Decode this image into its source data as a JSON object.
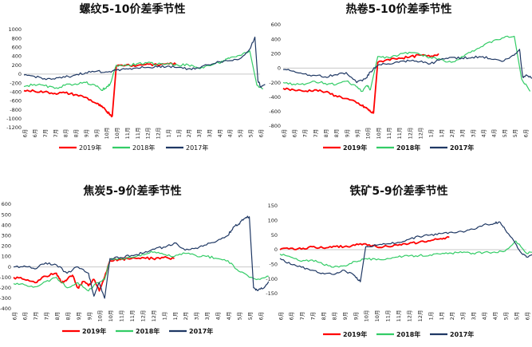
{
  "legend_labels": [
    "2019年",
    "2018年",
    "2017年"
  ],
  "series_colors": {
    "2019年": "#ff0000",
    "2018年": "#33cc66",
    "2017年": "#1f3864"
  },
  "chart_data": [
    {
      "type": "line",
      "title": "螺纹5-10价差季节性",
      "xlabel": "",
      "ylabel": "",
      "ylim": [
        -1200,
        1000
      ],
      "y_ticks": [
        "1000",
        "800",
        "600",
        "400",
        "200",
        "0",
        "-200",
        "-400",
        "-600",
        "-800",
        "-1000",
        "-1200"
      ],
      "x_ticks": [
        "6月",
        "6月",
        "7月",
        "7月",
        "8月",
        "8月",
        "9月",
        "9月",
        "10月",
        "10月",
        "11月",
        "11月",
        "12月",
        "12月",
        "1月",
        "1月",
        "2月",
        "3月",
        "3月",
        "4月",
        "4月",
        "5月",
        "5月",
        "6月"
      ],
      "grid": false,
      "legend_position": "bottom",
      "series": [
        {
          "name": "2019年",
          "x": [
            0,
            1,
            2,
            3,
            4,
            5,
            6,
            7,
            7.5,
            8,
            8.3,
            8.6,
            9,
            10,
            11,
            12,
            13,
            14,
            14.8
          ],
          "values": [
            -370,
            -380,
            -400,
            -430,
            -420,
            -460,
            -520,
            -650,
            -720,
            -820,
            -880,
            -940,
            180,
            210,
            190,
            230,
            200,
            240,
            220
          ]
        },
        {
          "name": "2018年",
          "x": [
            0,
            1,
            2,
            3,
            4,
            5,
            6,
            6.8,
            7.5,
            8,
            8.4,
            9,
            10,
            11,
            12,
            13,
            14,
            15,
            16,
            17,
            18,
            19,
            19.5,
            20,
            21,
            22,
            22.7,
            23.3
          ],
          "values": [
            -280,
            -230,
            -260,
            -320,
            -250,
            -220,
            -190,
            -230,
            -350,
            -320,
            -220,
            200,
            190,
            230,
            250,
            220,
            240,
            200,
            210,
            130,
            190,
            250,
            300,
            350,
            420,
            520,
            -250,
            -330
          ]
        },
        {
          "name": "2017年",
          "x": [
            0,
            1,
            2,
            3,
            4,
            5,
            6,
            7,
            8,
            9,
            10,
            11,
            12,
            13,
            14,
            15,
            16,
            17,
            18,
            19,
            20,
            21,
            22,
            22.5,
            22.8,
            23.1,
            23.5
          ],
          "values": [
            -20,
            -50,
            -100,
            -110,
            -70,
            -20,
            30,
            60,
            50,
            90,
            120,
            140,
            150,
            160,
            180,
            150,
            120,
            140,
            210,
            280,
            300,
            340,
            560,
            830,
            -150,
            -300,
            -230
          ]
        }
      ]
    },
    {
      "type": "line",
      "title": "热卷5-10价差季节性",
      "xlabel": "",
      "ylabel": "",
      "ylim": [
        -800,
        600
      ],
      "y_ticks": [
        "600",
        "400",
        "200",
        "0",
        "-200",
        "-400",
        "-600",
        "-800"
      ],
      "x_ticks": [
        "6月",
        "6月",
        "7月",
        "7月",
        "8月",
        "8月",
        "9月",
        "9月",
        "10月",
        "10月",
        "11月",
        "11月",
        "12月",
        "12月",
        "1月",
        "1月",
        "2月",
        "3月",
        "3月",
        "4月",
        "4月",
        "5月",
        "5月",
        "6月"
      ],
      "grid": false,
      "legend_position": "bottom",
      "series": [
        {
          "name": "2019年",
          "x": [
            0,
            1,
            2,
            3,
            4,
            5,
            6,
            7,
            7.5,
            8,
            8.3,
            8.6,
            9,
            10,
            11,
            12,
            13,
            14,
            14.8
          ],
          "values": [
            -280,
            -300,
            -320,
            -300,
            -330,
            -380,
            -420,
            -480,
            -520,
            -560,
            -600,
            -620,
            80,
            120,
            140,
            150,
            180,
            160,
            200
          ]
        },
        {
          "name": "2018年",
          "x": [
            0,
            1,
            2,
            3,
            4,
            5,
            6,
            7,
            7.5,
            8,
            8.3,
            9,
            10,
            11,
            12,
            13,
            14,
            15,
            16,
            17,
            18,
            19,
            20,
            21,
            22,
            22.7,
            23.5
          ],
          "values": [
            -200,
            -220,
            -230,
            -180,
            -210,
            -230,
            -180,
            -260,
            -320,
            -240,
            -300,
            160,
            150,
            180,
            220,
            190,
            150,
            120,
            80,
            160,
            240,
            300,
            380,
            420,
            440,
            -150,
            -320
          ]
        },
        {
          "name": "2017年",
          "x": [
            0,
            1,
            2,
            3,
            4,
            5,
            6,
            7,
            7.8,
            8.3,
            9,
            10,
            11,
            12,
            13,
            14,
            15,
            16,
            17,
            18,
            19,
            20,
            21,
            22,
            22.5,
            22.8,
            23.2,
            23.8
          ],
          "values": [
            -20,
            -40,
            -80,
            -100,
            -120,
            -90,
            -60,
            -200,
            -150,
            -50,
            40,
            60,
            80,
            100,
            90,
            60,
            120,
            150,
            140,
            150,
            160,
            120,
            100,
            180,
            260,
            -120,
            -100,
            -130
          ]
        }
      ]
    },
    {
      "type": "line",
      "title": "焦炭5-9价差季节性",
      "xlabel": "",
      "ylabel": "",
      "ylim": [
        -400,
        600
      ],
      "y_ticks": [
        "600",
        "500",
        "400",
        "300",
        "200",
        "100",
        "0",
        "-100",
        "-200",
        "-300",
        "-400"
      ],
      "x_ticks": [
        "6月",
        "6月",
        "7月",
        "7月",
        "8月",
        "8月",
        "9月",
        "9月",
        "10月",
        "10月",
        "11月",
        "11月",
        "12月",
        "12月",
        "1月",
        "1月",
        "2月",
        "3月",
        "3月",
        "4月",
        "4月",
        "5月",
        "5月",
        "6月"
      ],
      "grid": false,
      "legend_position": "bottom",
      "series": [
        {
          "name": "2019年",
          "x": [
            0,
            1,
            2,
            3,
            4,
            4.5,
            5,
            5.5,
            6,
            6.5,
            7,
            7.5,
            8,
            8.6,
            9,
            10,
            11,
            12,
            13,
            14,
            15
          ],
          "values": [
            -100,
            -120,
            -150,
            -90,
            -60,
            -150,
            -120,
            -80,
            -200,
            -140,
            -180,
            -120,
            -230,
            -60,
            60,
            70,
            80,
            90,
            80,
            90,
            80
          ]
        },
        {
          "name": "2018年",
          "x": [
            0,
            1,
            2,
            3,
            4,
            5,
            6,
            7,
            7.8,
            8.5,
            9,
            10,
            11,
            12,
            13,
            14,
            15,
            16,
            17,
            18,
            19,
            20,
            21,
            22,
            23,
            23.8
          ],
          "values": [
            -160,
            -170,
            -190,
            -140,
            -100,
            -200,
            -150,
            -230,
            -150,
            -120,
            70,
            80,
            90,
            120,
            140,
            120,
            100,
            130,
            110,
            100,
            80,
            60,
            -40,
            -100,
            -120,
            -90
          ]
        },
        {
          "name": "2017年",
          "x": [
            0,
            1,
            2,
            3,
            4,
            5,
            6,
            7,
            7.5,
            8,
            8.5,
            9,
            10,
            11,
            12,
            13,
            14,
            15,
            16,
            17,
            18,
            19,
            20,
            20.5,
            21,
            21.5,
            22,
            22.4,
            22.7,
            23.2,
            23.8
          ],
          "values": [
            0,
            10,
            -20,
            40,
            20,
            -60,
            0,
            -60,
            -280,
            -150,
            -300,
            80,
            90,
            110,
            130,
            170,
            190,
            230,
            160,
            180,
            210,
            250,
            300,
            380,
            410,
            460,
            480,
            -200,
            -220,
            -210,
            -140
          ]
        }
      ]
    },
    {
      "type": "line",
      "title": "铁矿5-9价差季节性",
      "xlabel": "",
      "ylabel": "",
      "ylim": [
        -150,
        150
      ],
      "y_ticks": [
        "150",
        "100",
        "50",
        "0",
        "-50",
        "-100",
        "-150"
      ],
      "x_ticks": [
        "6月",
        "6月",
        "7月",
        "7月",
        "8月",
        "8月",
        "9月",
        "9月",
        "10月",
        "10月",
        "11月",
        "11月",
        "12月",
        "12月",
        "1月",
        "1月",
        "2月",
        "3月",
        "3月",
        "4月",
        "4月",
        "5月",
        "5月",
        "6月"
      ],
      "grid": false,
      "legend_position": "bottom",
      "series": [
        {
          "name": "2019年",
          "x": [
            0,
            1,
            2,
            3,
            4,
            5,
            6,
            7,
            8,
            9,
            10,
            11,
            12,
            13,
            14,
            15,
            15.8
          ],
          "values": [
            0,
            5,
            2,
            10,
            6,
            12,
            10,
            15,
            20,
            10,
            12,
            15,
            20,
            26,
            30,
            38,
            42
          ]
        },
        {
          "name": "2018年",
          "x": [
            0,
            1,
            2,
            3,
            4,
            5,
            6,
            7,
            8,
            9,
            10,
            11,
            12,
            13,
            14,
            15,
            16,
            17,
            18,
            19,
            20,
            21,
            22,
            23,
            23.8
          ],
          "values": [
            -15,
            -25,
            -40,
            -35,
            -50,
            -60,
            -55,
            -40,
            -30,
            -35,
            -30,
            -25,
            -22,
            -20,
            -18,
            -15,
            -12,
            -10,
            -12,
            -10,
            -8,
            -5,
            30,
            -12,
            -8
          ]
        },
        {
          "name": "2017年",
          "x": [
            0,
            1,
            2,
            3,
            4,
            5,
            6,
            7,
            7.5,
            8,
            9,
            10,
            11,
            12,
            13,
            14,
            15,
            16,
            17,
            18,
            19,
            20,
            20.5,
            21,
            22,
            22.5,
            23,
            23.8
          ],
          "values": [
            -30,
            -50,
            -60,
            -70,
            -80,
            -85,
            -70,
            -90,
            -110,
            10,
            15,
            20,
            25,
            35,
            45,
            50,
            55,
            60,
            62,
            70,
            85,
            90,
            95,
            70,
            20,
            -10,
            -25,
            -15
          ]
        }
      ]
    }
  ]
}
